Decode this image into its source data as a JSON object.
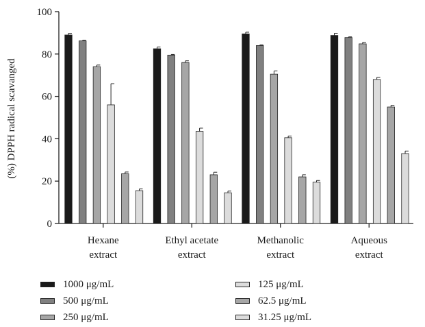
{
  "chart_data": {
    "type": "bar",
    "ylabel": "(%) DPPH radical scavanged",
    "xlabel": "",
    "ylim": [
      0,
      100
    ],
    "yticks": [
      0,
      20,
      40,
      60,
      80,
      100
    ],
    "grid": false,
    "legend_position": "bottom",
    "categories": [
      [
        "Hexane",
        "extract"
      ],
      [
        "Ethyl acetate",
        "extract"
      ],
      [
        "Methanolic",
        "extract"
      ],
      [
        "Aqueous",
        "extract"
      ]
    ],
    "series": [
      {
        "name": "1000 μg/mL",
        "color": "#1a1a1a",
        "values": [
          89,
          82.5,
          89.5,
          88.8
        ],
        "errors": [
          0.8,
          0.8,
          0.8,
          1.0
        ]
      },
      {
        "name": "500 μg/mL",
        "color": "#808080",
        "values": [
          86.2,
          79.5,
          84,
          87.8
        ],
        "errors": [
          0.3,
          0.3,
          0.3,
          0.3
        ]
      },
      {
        "name": "250 μg/mL",
        "color": "#a6a6a6",
        "values": [
          74,
          76,
          70.5,
          84.8
        ],
        "errors": [
          0.8,
          0.8,
          1.5,
          0.8
        ]
      },
      {
        "name": "125 μg/mL",
        "color": "#dcdcdc",
        "values": [
          56,
          43.5,
          40.5,
          68
        ],
        "errors": [
          10,
          1.5,
          0.8,
          1.0
        ]
      },
      {
        "name": "62.5 μg/mL",
        "color": "#a6a6a6",
        "values": [
          23.5,
          23,
          22,
          55
        ],
        "errors": [
          0.8,
          1.2,
          1.0,
          0.8
        ]
      },
      {
        "name": "31.25 μg/mL",
        "color": "#dcdcdc",
        "values": [
          15.5,
          14.5,
          19.5,
          33
        ],
        "errors": [
          0.8,
          0.8,
          0.8,
          1.2
        ]
      }
    ]
  }
}
